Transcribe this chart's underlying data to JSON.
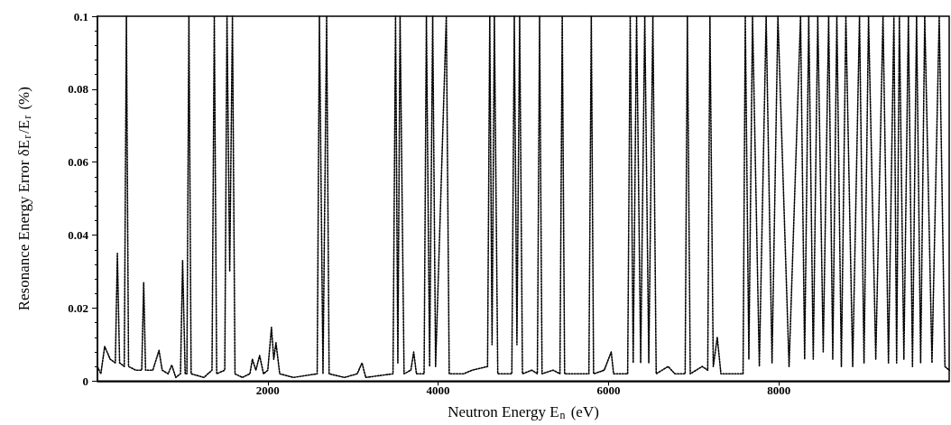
{
  "chart_data": {
    "type": "line",
    "xlabel": "Neutron Energy E$_{n}$ (eV)",
    "ylabel": "Resonance Energy Error δE$_{r}$/E$_{r}$ (%)",
    "xlim": [
      0,
      10000
    ],
    "ylim": [
      0,
      0.1
    ],
    "xticks": [
      2000,
      4000,
      6000,
      8000
    ],
    "yticks": [
      0,
      0.02,
      0.04,
      0.06,
      0.08,
      0.1
    ],
    "grid": false,
    "marker": "none",
    "line_style": "dotted",
    "series": [
      {
        "color": "#000000",
        "x": [
          0,
          40,
          85,
          150,
          210,
          234,
          260,
          315,
          340,
          365,
          450,
          520,
          543,
          565,
          650,
          723,
          760,
          830,
          872,
          920,
          975,
          1000,
          1030,
          1050,
          1074,
          1100,
          1250,
          1345,
          1372,
          1400,
          1495,
          1521,
          1553,
          1585,
          1615,
          1700,
          1790,
          1819,
          1860,
          1904,
          1950,
          2000,
          2043,
          2070,
          2096,
          2140,
          2300,
          2580,
          2606,
          2648,
          2691,
          2720,
          2900,
          3050,
          3106,
          3150,
          3470,
          3500,
          3527,
          3553,
          3600,
          3680,
          3713,
          3745,
          3835,
          3862,
          3900,
          3936,
          3970,
          4096,
          4130,
          4300,
          4400,
          4580,
          4606,
          4633,
          4660,
          4700,
          4865,
          4894,
          4925,
          4957,
          4990,
          5100,
          5165,
          5191,
          5220,
          5350,
          5430,
          5457,
          5485,
          5600,
          5770,
          5798,
          5825,
          5950,
          6032,
          6060,
          6225,
          6255,
          6290,
          6330,
          6378,
          6426,
          6473,
          6521,
          6560,
          6700,
          6780,
          6900,
          6926,
          6960,
          7100,
          7165,
          7191,
          7230,
          7277,
          7320,
          7450,
          7580,
          7606,
          7648,
          7691,
          7771,
          7851,
          7920,
          7989,
          8120,
          8255,
          8303,
          8351,
          8404,
          8457,
          8521,
          8585,
          8633,
          8681,
          8734,
          8787,
          8867,
          8947,
          9000,
          9053,
          9138,
          9223,
          9287,
          9351,
          9383,
          9415,
          9468,
          9521,
          9569,
          9617,
          9665,
          9713,
          9798,
          9883,
          9950,
          10000
        ],
        "values": [
          0.004,
          0.002,
          0.0095,
          0.006,
          0.005,
          0.035,
          0.005,
          0.004,
          0.1,
          0.004,
          0.003,
          0.003,
          0.027,
          0.003,
          0.003,
          0.0084,
          0.003,
          0.002,
          0.0044,
          0.001,
          0.002,
          0.033,
          0.002,
          0.002,
          0.1,
          0.002,
          0.001,
          0.003,
          0.1,
          0.002,
          0.003,
          0.1,
          0.03,
          0.1,
          0.002,
          0.001,
          0.002,
          0.006,
          0.003,
          0.007,
          0.002,
          0.003,
          0.0147,
          0.006,
          0.0105,
          0.002,
          0.001,
          0.002,
          0.1,
          0.002,
          0.1,
          0.002,
          0.001,
          0.002,
          0.005,
          0.001,
          0.002,
          0.1,
          0.005,
          0.1,
          0.002,
          0.003,
          0.008,
          0.002,
          0.002,
          0.1,
          0.004,
          0.1,
          0.004,
          0.1,
          0.002,
          0.002,
          0.003,
          0.004,
          0.1,
          0.01,
          0.1,
          0.002,
          0.002,
          0.1,
          0.01,
          0.1,
          0.002,
          0.003,
          0.002,
          0.1,
          0.002,
          0.003,
          0.002,
          0.1,
          0.002,
          0.002,
          0.002,
          0.1,
          0.002,
          0.003,
          0.008,
          0.002,
          0.002,
          0.1,
          0.005,
          0.1,
          0.005,
          0.1,
          0.005,
          0.1,
          0.002,
          0.004,
          0.002,
          0.002,
          0.1,
          0.002,
          0.004,
          0.003,
          0.1,
          0.004,
          0.012,
          0.002,
          0.002,
          0.002,
          0.1,
          0.006,
          0.1,
          0.004,
          0.1,
          0.005,
          0.1,
          0.004,
          0.1,
          0.006,
          0.1,
          0.006,
          0.1,
          0.008,
          0.1,
          0.006,
          0.1,
          0.004,
          0.1,
          0.004,
          0.1,
          0.005,
          0.1,
          0.006,
          0.1,
          0.005,
          0.1,
          0.005,
          0.1,
          0.006,
          0.1,
          0.004,
          0.1,
          0.005,
          0.1,
          0.005,
          0.1,
          0.004,
          0.003
        ]
      }
    ]
  }
}
